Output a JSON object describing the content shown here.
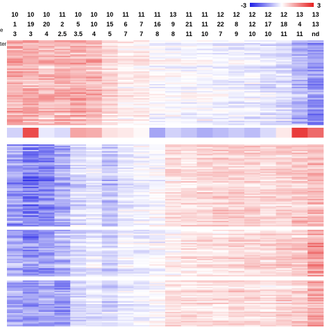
{
  "chart_data": {
    "type": "heatmap",
    "color_scale": {
      "min_label": "-3",
      "max_label": "3",
      "min": -3,
      "max": 3,
      "low_color": "#1e1ee6",
      "mid_color": "#ffffff",
      "high_color": "#e61e1e"
    },
    "row_label_fragments": [
      "e",
      "ter"
    ],
    "columns": [
      [
        "10",
        "1",
        "3"
      ],
      [
        "10",
        "19",
        "3"
      ],
      [
        "10",
        "20",
        "4"
      ],
      [
        "11",
        "2",
        "2.5"
      ],
      [
        "10",
        "5",
        "3.5"
      ],
      [
        "10",
        "10",
        "4"
      ],
      [
        "10",
        "15",
        "5"
      ],
      [
        "11",
        "6",
        "7"
      ],
      [
        "11",
        "7",
        "7"
      ],
      [
        "11",
        "16",
        "8"
      ],
      [
        "13",
        "9",
        "8"
      ],
      [
        "11",
        "21",
        "11"
      ],
      [
        "11",
        "11",
        "10"
      ],
      [
        "12",
        "22",
        "7"
      ],
      [
        "12",
        "8",
        "9"
      ],
      [
        "12",
        "12",
        "10"
      ],
      [
        "12",
        "17",
        "10"
      ],
      [
        "12",
        "18",
        "11"
      ],
      [
        "13",
        "4",
        "11"
      ],
      [
        "13",
        "13",
        "nd"
      ]
    ],
    "clusters": [
      {
        "name": "",
        "n_rows": 60,
        "mean_profile": [
          1.1,
          1.0,
          0.9,
          1.0,
          1.0,
          0.9,
          0.5,
          0.2,
          0.2,
          0.0,
          -0.1,
          -0.1,
          -0.1,
          -0.2,
          -0.3,
          -0.3,
          -0.4,
          -0.5,
          -1.0,
          -1.4
        ]
      },
      {
        "name": "",
        "n_rows": 1,
        "mean_profile": [
          -0.6,
          2.4,
          -0.3,
          -0.5,
          1.2,
          1.1,
          0.4,
          0.3,
          0.1,
          -1.2,
          -0.6,
          -0.8,
          -1.1,
          -0.9,
          -0.7,
          -0.9,
          -0.5,
          0.3,
          2.6,
          2.0
        ]
      },
      {
        "name": "",
        "n_rows": 60,
        "mean_profile": [
          -1.4,
          -1.7,
          -1.5,
          -1.2,
          -0.5,
          -0.3,
          -0.8,
          -0.3,
          -0.2,
          -0.1,
          0.4,
          0.4,
          0.5,
          0.6,
          0.6,
          0.6,
          0.5,
          0.6,
          0.7,
          0.9
        ]
      },
      {
        "name": "",
        "n_rows": 35,
        "mean_profile": [
          -1.1,
          -1.5,
          -1.3,
          -1.0,
          -0.5,
          -0.3,
          -0.6,
          -0.2,
          -0.2,
          -0.1,
          0.2,
          0.3,
          0.4,
          0.4,
          0.5,
          0.5,
          0.5,
          0.6,
          0.7,
          1.4
        ]
      },
      {
        "name": "",
        "n_rows": 35,
        "mean_profile": [
          -1.2,
          -1.3,
          -1.1,
          -1.4,
          -0.6,
          -0.4,
          -0.6,
          -0.3,
          -0.2,
          0.0,
          0.5,
          0.4,
          0.4,
          0.4,
          0.5,
          0.4,
          0.4,
          0.5,
          0.6,
          1.1
        ]
      }
    ]
  }
}
